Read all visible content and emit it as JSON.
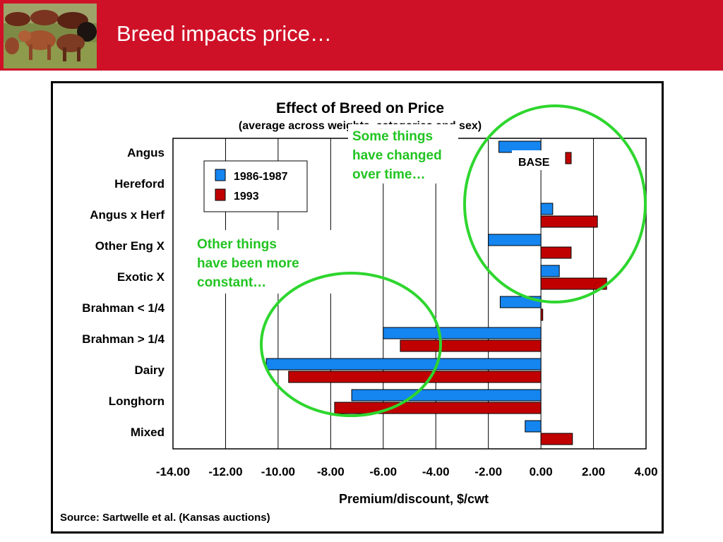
{
  "slide": {
    "title": "Breed impacts price…"
  },
  "chart_data": {
    "type": "bar",
    "orientation": "horizontal",
    "title": "Effect of Breed on Price",
    "subtitle": "(average across weights, categories and sex)",
    "xlabel": "Premium/discount, $/cwt",
    "ylabel": "",
    "xlim": [
      -14,
      4
    ],
    "xticks": [
      -14,
      -12,
      -10,
      -8,
      -6,
      -4,
      -2,
      0,
      2,
      4
    ],
    "xtick_labels": [
      "-14.00",
      "-12.00",
      "-10.00",
      "-8.00",
      "-6.00",
      "-4.00",
      "-2.00",
      "0.00",
      "2.00",
      "4.00"
    ],
    "grid": "vertical",
    "legend_position": "top-left",
    "categories": [
      "Angus",
      "Hereford",
      "Angus x Herf",
      "Other Eng X",
      "Exotic X",
      "Brahman < 1/4",
      "Brahman > 1/4",
      "Dairy",
      "Longhorn",
      "Mixed"
    ],
    "series": [
      {
        "name": "1986-1987",
        "color": "#1585f0",
        "values": [
          -1.6,
          null,
          0.45,
          -2.0,
          0.7,
          -1.55,
          -6.0,
          -10.45,
          -7.2,
          -0.6
        ]
      },
      {
        "name": "1993",
        "color": "#c00000",
        "values": [
          null,
          null,
          2.15,
          1.15,
          2.5,
          0.07,
          -5.35,
          -9.6,
          -7.85,
          1.2
        ]
      }
    ],
    "annotations": [
      {
        "text": "BASE",
        "category": "Angus"
      },
      {
        "text": "Some things have changed over time…",
        "lines": [
          "Some things",
          "have changed",
          "over time…"
        ],
        "color": "#22c422"
      },
      {
        "text": "Other things have been more constant…",
        "lines": [
          "Other things",
          "have been more",
          "constant…"
        ],
        "color": "#22c422"
      }
    ],
    "source": "Source:  Sartwelle et al. (Kansas auctions)"
  }
}
